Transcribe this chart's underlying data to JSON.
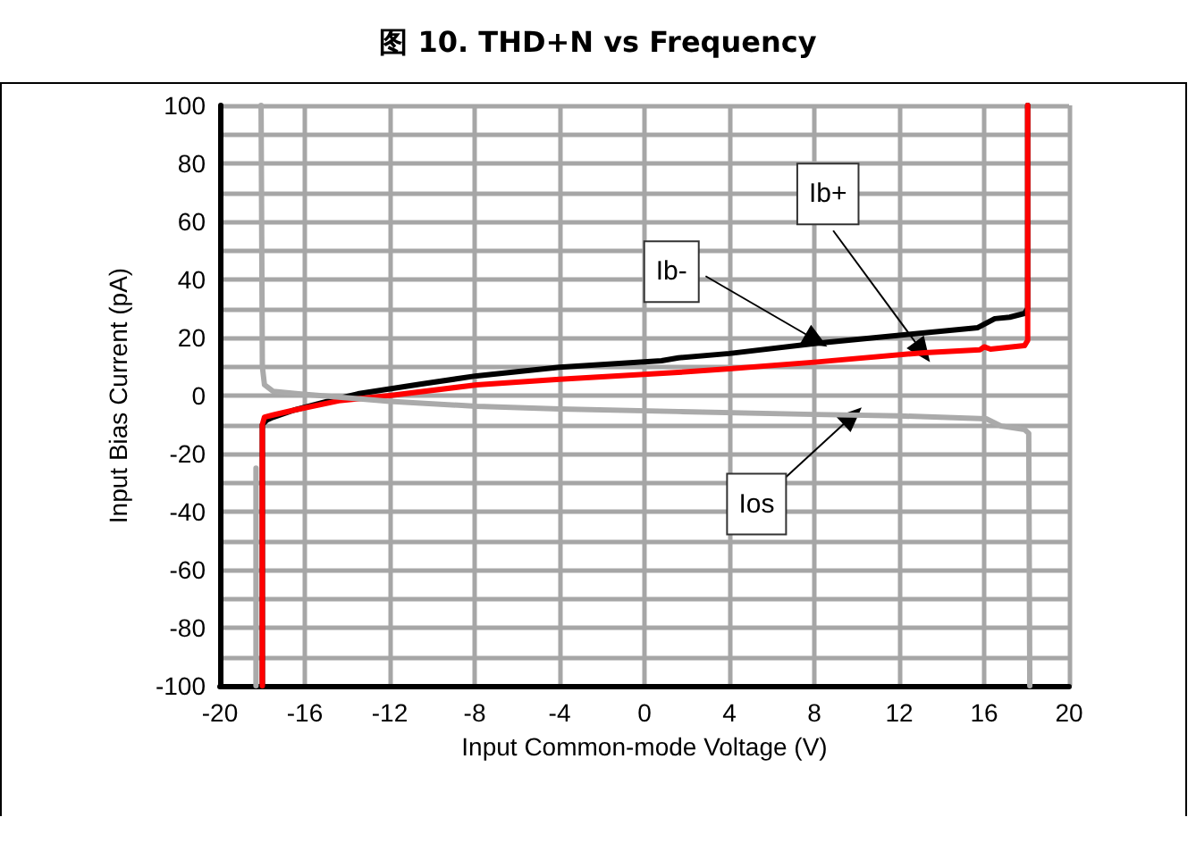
{
  "chart_data": {
    "type": "line",
    "title": "图 10. THD+N vs Frequency",
    "xlabel": "Input Common-mode Voltage (V)",
    "ylabel": "Input Bias Current (pA)",
    "series": [
      {
        "color": "#000000",
        "x": [
          -18,
          -18,
          -17.8,
          -17.5,
          -16.5,
          -14.4,
          -13.5,
          -10.5,
          -7.9,
          -4,
          0.8,
          1.6,
          4,
          8.1,
          12,
          15.7,
          16.5,
          17.2,
          17.9,
          18.05,
          18.05
        ],
        "values": [
          -100,
          -10,
          -8.5,
          -7.5,
          -5,
          -1,
          0.6,
          4,
          6.8,
          9.8,
          12,
          13,
          14.5,
          18,
          20.8,
          23.4,
          26.5,
          27,
          28.3,
          30,
          100
        ]
      },
      {
        "color": "#ff0000",
        "x": [
          -18,
          -18,
          -17.9,
          -17.5,
          -16.5,
          -14.4,
          -12,
          -7.9,
          -4,
          1.6,
          4,
          8,
          13.2,
          15.8,
          16,
          16.3,
          17.9,
          18.05,
          18.05
        ],
        "values": [
          -100,
          -10,
          -7.4,
          -6.7,
          -5,
          -1.8,
          0,
          3.7,
          5.6,
          8,
          9.2,
          11.5,
          14.8,
          15.8,
          16.8,
          16,
          17.2,
          19,
          100
        ]
      },
      {
        "color": "#aaaaaa",
        "x": [
          -18.3,
          -18.3,
          null,
          -18.06,
          -18,
          -17.9,
          -17.5,
          -16.3,
          -12,
          -7.9,
          -4,
          1.6,
          8,
          12,
          16.1,
          16.8,
          17.9,
          18.1,
          18.15
        ],
        "values": [
          -100,
          -25,
          null,
          100,
          10,
          3.7,
          1.5,
          0.6,
          -2,
          -3.7,
          -4.6,
          -5.5,
          -6.5,
          -7,
          -8,
          -10.5,
          -11.7,
          -13,
          -100
        ]
      }
    ],
    "xlim": [
      -20,
      20
    ],
    "xticks": [
      -20,
      -16,
      -12,
      -8,
      -4,
      0,
      4,
      8,
      12,
      16,
      20
    ],
    "ylim": [
      -100,
      100
    ],
    "yticks": [
      -100,
      {
        "value": -90,
        "label": null
      },
      -80,
      {
        "value": -70,
        "label": null
      },
      -60,
      {
        "value": -50,
        "label": null
      },
      -40,
      {
        "value": -30,
        "label": null
      },
      -20,
      {
        "value": -10,
        "label": null
      },
      0,
      {
        "value": 10,
        "label": null
      },
      20,
      {
        "value": 30,
        "label": null
      },
      40,
      {
        "value": 50,
        "label": null
      },
      60,
      {
        "value": 70,
        "label": null
      },
      80,
      {
        "value": 90,
        "label": null
      },
      100
    ],
    "grid": true,
    "marker": "none",
    "line_style": "solid",
    "annotations": [
      {
        "text": "Ib-",
        "x": 8.1,
        "y": 19
      },
      {
        "text": "Ib+",
        "x": 13.1,
        "y": 15
      },
      {
        "text": "Ios",
        "x": 9.8,
        "y": -7
      }
    ]
  }
}
